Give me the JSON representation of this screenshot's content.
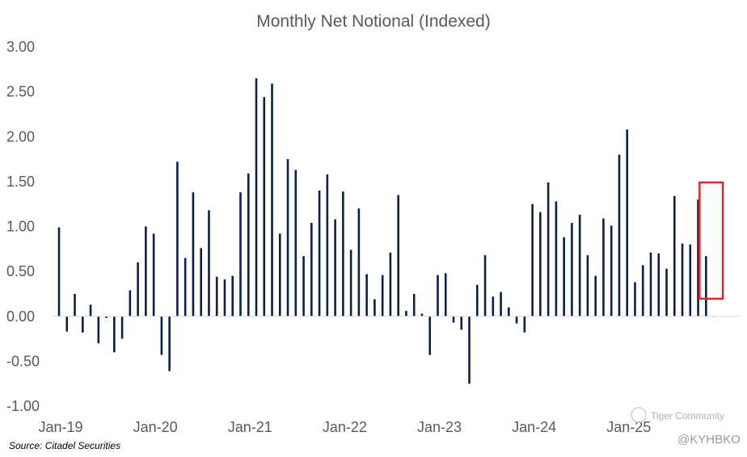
{
  "chart_data": {
    "type": "bar",
    "title": "Monthly Net Notional (Indexed)",
    "ylim": [
      -1.0,
      3.0
    ],
    "y_ticks": [
      "3.00",
      "2.50",
      "2.00",
      "1.50",
      "1.00",
      "0.50",
      "0.00",
      "-0.50",
      "-1.00"
    ],
    "x_ticks": [
      "Jan-19",
      "Jan-20",
      "Jan-21",
      "Jan-22",
      "Jan-23",
      "Jan-24",
      "Jan-25"
    ],
    "grid": false,
    "bar_color": "#0d1f45",
    "highlight_color": "#e0262b",
    "highlight_last_n": 2,
    "x": [
      "2019-01",
      "2019-02",
      "2019-03",
      "2019-04",
      "2019-05",
      "2019-06",
      "2019-07",
      "2019-08",
      "2019-09",
      "2019-10",
      "2019-11",
      "2019-12",
      "2020-01",
      "2020-02",
      "2020-03",
      "2020-04",
      "2020-05",
      "2020-06",
      "2020-07",
      "2020-08",
      "2020-09",
      "2020-10",
      "2020-11",
      "2020-12",
      "2021-01",
      "2021-02",
      "2021-03",
      "2021-04",
      "2021-05",
      "2021-06",
      "2021-07",
      "2021-08",
      "2021-09",
      "2021-10",
      "2021-11",
      "2021-12",
      "2022-01",
      "2022-02",
      "2022-03",
      "2022-04",
      "2022-05",
      "2022-06",
      "2022-07",
      "2022-08",
      "2022-09",
      "2022-10",
      "2022-11",
      "2022-12",
      "2023-01",
      "2023-02",
      "2023-03",
      "2023-04",
      "2023-05",
      "2023-06",
      "2023-07",
      "2023-08",
      "2023-09",
      "2023-10",
      "2023-11",
      "2023-12",
      "2024-01",
      "2024-02",
      "2024-03",
      "2024-04",
      "2024-05",
      "2024-06",
      "2024-07",
      "2024-08",
      "2024-09",
      "2024-10",
      "2024-11",
      "2024-12",
      "2025-01",
      "2025-02",
      "2025-03",
      "2025-04",
      "2025-05",
      "2025-06",
      "2025-07",
      "2025-08",
      "2025-09",
      "2025-10",
      "2025-11",
      "2025-12"
    ],
    "values": [
      0.99,
      -0.17,
      0.25,
      -0.18,
      0.13,
      -0.3,
      -0.02,
      -0.4,
      -0.25,
      0.29,
      0.6,
      1.0,
      0.92,
      -0.43,
      -0.61,
      1.72,
      0.65,
      1.38,
      0.76,
      1.18,
      0.44,
      0.41,
      0.45,
      1.38,
      1.59,
      2.65,
      2.44,
      2.59,
      0.92,
      1.75,
      1.63,
      0.67,
      1.04,
      1.4,
      1.58,
      1.08,
      1.39,
      0.74,
      1.2,
      0.47,
      0.19,
      0.46,
      0.71,
      1.35,
      0.06,
      0.25,
      0.03,
      -0.43,
      0.46,
      0.48,
      -0.07,
      -0.15,
      -0.75,
      0.35,
      0.68,
      0.22,
      0.27,
      0.1,
      -0.08,
      -0.18,
      1.25,
      1.16,
      1.49,
      1.28,
      0.88,
      1.04,
      1.13,
      0.68,
      0.45,
      1.09,
      1.01,
      1.8,
      2.08,
      0.38,
      0.57,
      0.71,
      0.7,
      0.53,
      1.34,
      0.81,
      0.8,
      1.3,
      0.67,
      0.0
    ]
  },
  "source": "Source: Citadel Securities",
  "watermark_community": "Tiger Community",
  "watermark_handle": "@KYHBKO"
}
